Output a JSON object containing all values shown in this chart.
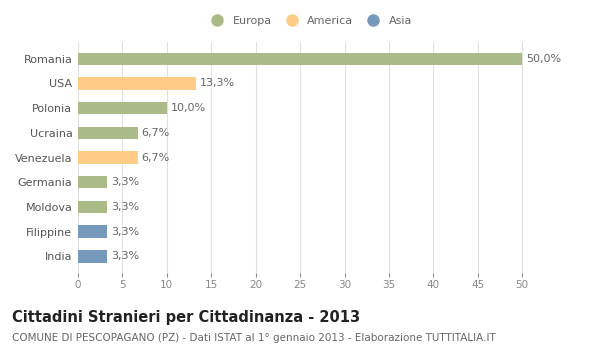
{
  "categories": [
    "India",
    "Filippine",
    "Moldova",
    "Germania",
    "Venezuela",
    "Ucraina",
    "Polonia",
    "USA",
    "Romania"
  ],
  "values": [
    3.3,
    3.3,
    3.3,
    3.3,
    6.7,
    6.7,
    10.0,
    13.3,
    50.0
  ],
  "labels": [
    "3,3%",
    "3,3%",
    "3,3%",
    "3,3%",
    "6,7%",
    "6,7%",
    "10,0%",
    "13,3%",
    "50,0%"
  ],
  "colors": [
    "#7799bb",
    "#7799bb",
    "#aabb88",
    "#aabb88",
    "#ffcc88",
    "#aabb88",
    "#aabb88",
    "#ffcc88",
    "#aabb88"
  ],
  "legend_items": [
    {
      "label": "Europa",
      "color": "#aabb88"
    },
    {
      "label": "America",
      "color": "#ffcc88"
    },
    {
      "label": "Asia",
      "color": "#7799bb"
    }
  ],
  "title": "Cittadini Stranieri per Cittadinanza - 2013",
  "subtitle": "COMUNE DI PESCOPAGANO (PZ) - Dati ISTAT al 1° gennaio 2013 - Elaborazione TUTTITALIA.IT",
  "xlim": [
    0,
    52
  ],
  "xticks": [
    0,
    5,
    10,
    15,
    20,
    25,
    30,
    35,
    40,
    45,
    50
  ],
  "background_color": "#ffffff",
  "plot_bg_color": "#ffffff",
  "grid_color": "#e0e0e0",
  "bar_height": 0.5,
  "label_fontsize": 8,
  "title_fontsize": 10.5,
  "subtitle_fontsize": 7.5,
  "tick_fontsize": 7.5,
  "ylabel_fontsize": 8
}
